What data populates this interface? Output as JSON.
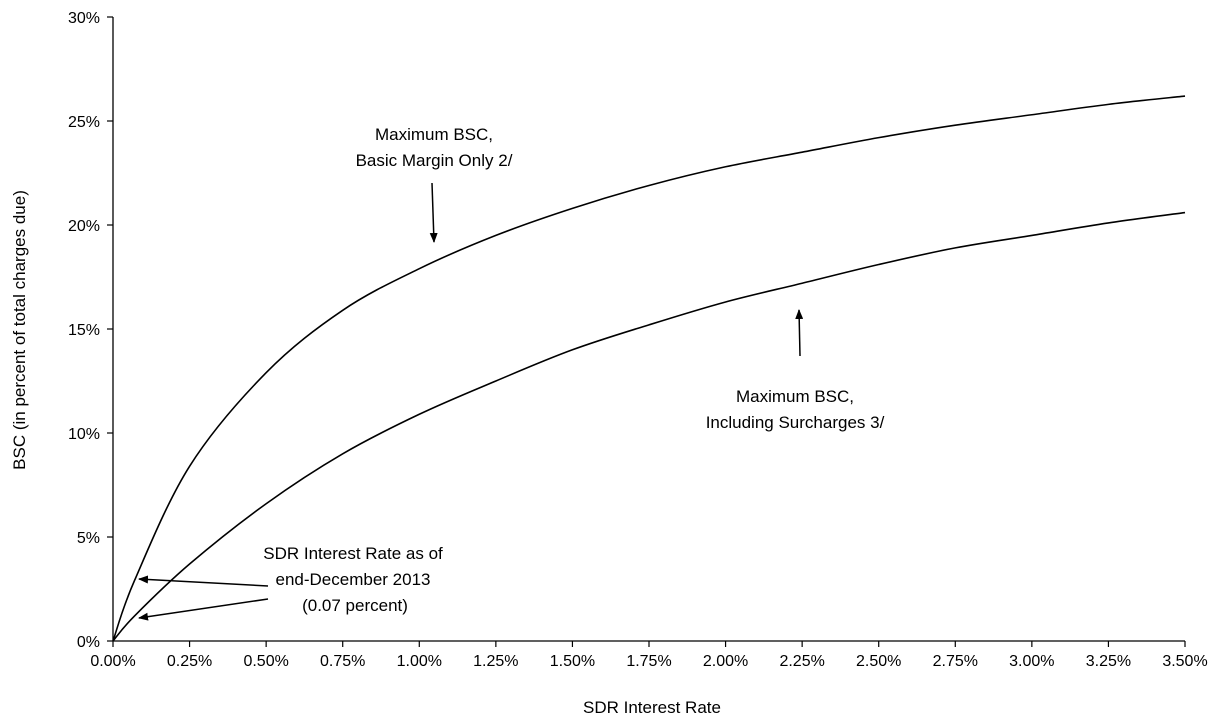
{
  "chart_data": {
    "type": "line",
    "title": "",
    "xlabel": "SDR Interest Rate",
    "ylabel": "BSC (in percent of total charges due)",
    "xlim": [
      0,
      3.5
    ],
    "ylim": [
      0,
      30
    ],
    "x_tick_labels": [
      "0.00%",
      "0.25%",
      "0.50%",
      "0.75%",
      "1.00%",
      "1.25%",
      "1.50%",
      "1.75%",
      "2.00%",
      "2.25%",
      "2.50%",
      "2.75%",
      "3.00%",
      "3.25%",
      "3.50%"
    ],
    "y_tick_labels": [
      "0%",
      "5%",
      "10%",
      "15%",
      "20%",
      "25%",
      "30%"
    ],
    "grid": false,
    "legend": "none",
    "series": [
      {
        "x": [
          0,
          0.07,
          0.25,
          0.5,
          0.75,
          1.0,
          1.25,
          1.5,
          1.75,
          2.0,
          2.25,
          2.5,
          2.75,
          3.0,
          3.25,
          3.5
        ],
        "y": [
          0,
          2.9,
          8.4,
          12.9,
          15.9,
          17.9,
          19.5,
          20.8,
          21.9,
          22.8,
          23.5,
          24.2,
          24.8,
          25.3,
          25.8,
          26.2
        ]
      },
      {
        "x": [
          0,
          0.07,
          0.25,
          0.5,
          0.75,
          1.0,
          1.25,
          1.5,
          1.75,
          2.0,
          2.25,
          2.5,
          2.75,
          3.0,
          3.25,
          3.5
        ],
        "y": [
          0,
          1.2,
          3.7,
          6.6,
          9.0,
          10.9,
          12.5,
          14.0,
          15.2,
          16.3,
          17.2,
          18.1,
          18.9,
          19.5,
          20.1,
          20.6
        ]
      }
    ],
    "annotations": [
      {
        "lines": [
          "Maximum BSC,",
          "Basic Margin Only 2/"
        ]
      },
      {
        "lines": [
          "Maximum BSC,",
          "Including Surcharges 3/"
        ]
      },
      {
        "lines": [
          "SDR Interest Rate as of",
          "end-December 2013",
          "(0.07 percent)"
        ]
      }
    ]
  }
}
